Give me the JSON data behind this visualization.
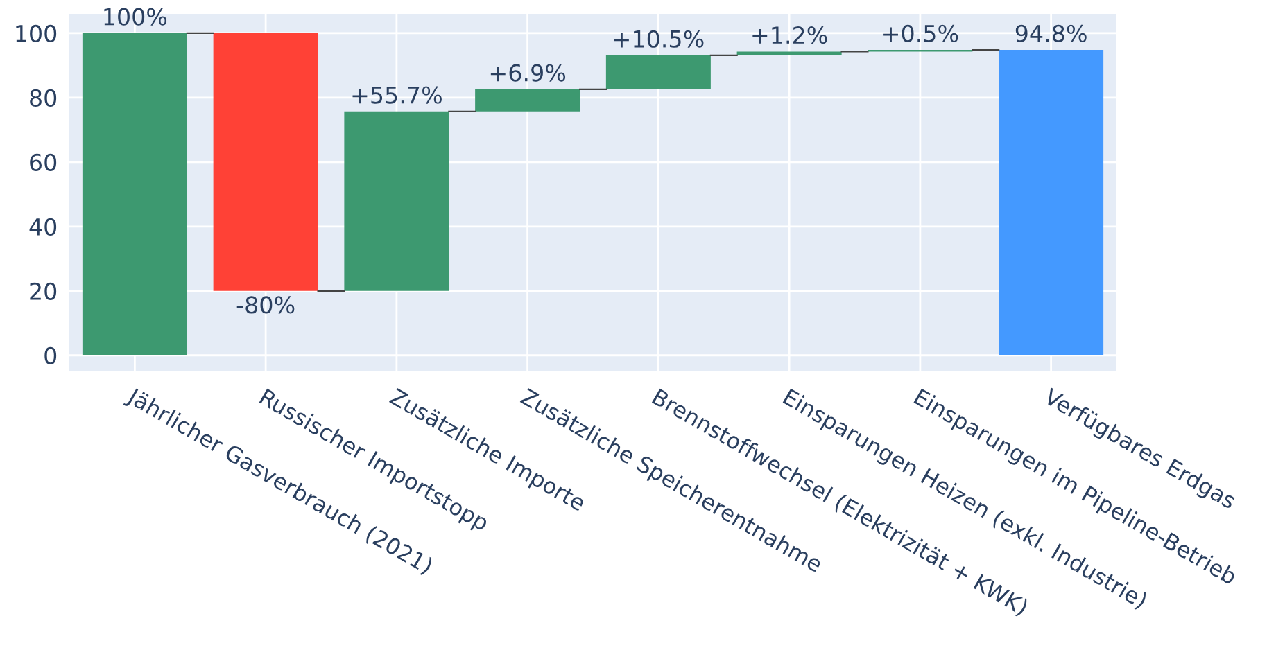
{
  "chart_data": {
    "type": "bar",
    "categories": [
      "Jährlicher Gasverbrauch (2021)",
      "Russischer Importstopp",
      "Zusätzliche Importe",
      "Zusätzliche Speicherentnahme",
      "Brennstoffwechsel (Elektrizität + KWK)",
      "Einsparungen Heizen (exkl. Industrie)",
      "Einsparungen im Pipeline-Betrieb",
      "Verfügbares Erdgas"
    ],
    "values": [
      100,
      -80,
      55.7,
      6.9,
      10.5,
      1.2,
      0.5,
      94.8
    ],
    "base": [
      0,
      100,
      20,
      75.7,
      82.6,
      93.1,
      94.3,
      0
    ],
    "colors": [
      "#3d9970",
      "#ff4136",
      "#3d9970",
      "#3d9970",
      "#3d9970",
      "#3d9970",
      "#3d9970",
      "#4499ff"
    ],
    "value_labels": [
      "100%",
      "-80%",
      "+55.7%",
      "+6.9%",
      "+10.5%",
      "+1.2%",
      "+0.5%",
      "94.8%"
    ],
    "ylim": [
      -5,
      106
    ],
    "yticks": [
      0,
      20,
      40,
      60,
      80,
      100
    ],
    "grid": true
  }
}
